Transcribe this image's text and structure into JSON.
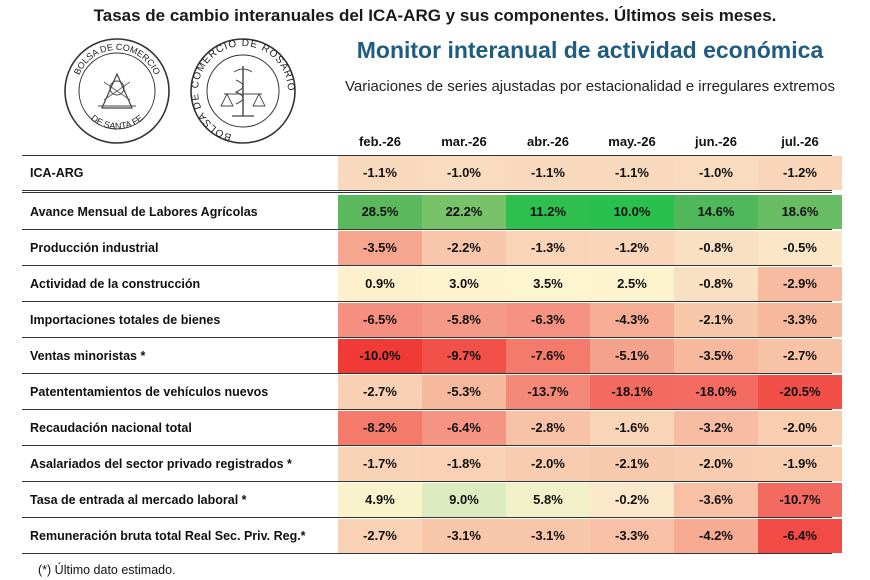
{
  "header": {
    "top_title": "Tasas de cambio interanuales del ICA-ARG y sus componentes. Últimos seis meses.",
    "monitor_title": "Monitor interanual de actividad económica",
    "subtitle": "Variaciones de series ajustadas por estacionalidad e irregulares extremos"
  },
  "logos": {
    "seal_santa_fe": {
      "text_top": "BOLSA DE COMERCIO",
      "text_bottom": "DE SANTA FE"
    },
    "seal_rosario": {
      "text_ring": "BOLSA DE COMERCIO DE ROSARIO"
    }
  },
  "table": {
    "columns": [
      "feb.-26",
      "mar.-26",
      "abr.-26",
      "may.-26",
      "jun.-26",
      "jul.-26"
    ],
    "rows": [
      {
        "label": "ICA-ARG",
        "values": [
          "-1.1%",
          "-1.0%",
          "-1.1%",
          "-1.1%",
          "-1.0%",
          "-1.2%"
        ],
        "colors": [
          "#f9d9bd",
          "#f9dcc0",
          "#f9d9bd",
          "#f9d9bd",
          "#f9dcc0",
          "#f9d6ba"
        ]
      },
      {
        "label": "Avance Mensual de Labores Agrícolas",
        "values": [
          "28.5%",
          "22.2%",
          "11.2%",
          "10.0%",
          "14.6%",
          "18.6%"
        ],
        "colors": [
          "#5cb85c",
          "#78c26a",
          "#2fbf4f",
          "#29c04e",
          "#4eb85a",
          "#68bd64"
        ]
      },
      {
        "label": "Producción industrial",
        "values": [
          "-3.5%",
          "-2.2%",
          "-1.3%",
          "-1.2%",
          "-0.8%",
          "-0.5%"
        ],
        "colors": [
          "#f6a58f",
          "#f8c7ab",
          "#f9d4b7",
          "#f9d6b9",
          "#fae0c3",
          "#fbe6c8"
        ]
      },
      {
        "label": "Actividad de la construcción",
        "values": [
          "0.9%",
          "3.0%",
          "3.5%",
          "2.5%",
          "-0.8%",
          "-2.9%"
        ],
        "colors": [
          "#fdf1cd",
          "#fdf4cf",
          "#fdf5d0",
          "#fdf3ce",
          "#fae0c3",
          "#f7bba1"
        ]
      },
      {
        "label": "Importaciones totales de bienes",
        "values": [
          "-6.5%",
          "-5.8%",
          "-6.3%",
          "-4.3%",
          "-2.1%",
          "-3.3%"
        ],
        "colors": [
          "#f58f80",
          "#f59a86",
          "#f59282",
          "#f6ad94",
          "#f8c8ab",
          "#f7b99e"
        ]
      },
      {
        "label": "Ventas minoristas *",
        "values": [
          "-10.0%",
          "-9.7%",
          "-7.6%",
          "-5.1%",
          "-3.5%",
          "-2.7%"
        ],
        "colors": [
          "#f03a36",
          "#f2514a",
          "#f47a6b",
          "#f5a28c",
          "#f7b89d",
          "#f8c2a7"
        ]
      },
      {
        "label": "Patententamientos de vehículos nuevos",
        "values": [
          "-2.7%",
          "-5.3%",
          "-13.7%",
          "-18.1%",
          "-18.0%",
          "-20.5%"
        ],
        "colors": [
          "#f8d0b3",
          "#f6b99e",
          "#f48878",
          "#f36a60",
          "#f36b61",
          "#f24f49"
        ]
      },
      {
        "label": "Recaudación nacional total",
        "values": [
          "-8.2%",
          "-6.4%",
          "-2.8%",
          "-1.6%",
          "-3.2%",
          "-2.0%"
        ],
        "colors": [
          "#f47a6c",
          "#f59483",
          "#f8c2a6",
          "#f9d5b8",
          "#f7bca1",
          "#f8cdb0"
        ]
      },
      {
        "label": "Asalariados del sector privado registrados *",
        "values": [
          "-1.7%",
          "-1.8%",
          "-2.0%",
          "-2.1%",
          "-2.0%",
          "-1.9%"
        ],
        "colors": [
          "#f9d3b6",
          "#f9d1b4",
          "#f8ccaf",
          "#f8caad",
          "#f8ccaf",
          "#f8ceb1"
        ]
      },
      {
        "label": "Tasa de entrada al mercado laboral *",
        "values": [
          "4.9%",
          "9.0%",
          "5.8%",
          "-0.2%",
          "-3.6%",
          "-10.7%"
        ],
        "colors": [
          "#f8f3cb",
          "#ddebc1",
          "#f1f0c8",
          "#fbe8ca",
          "#f8c0a4",
          "#f26a60"
        ]
      },
      {
        "label": "Remuneración bruta total Real Sec. Priv. Reg.*",
        "values": [
          "-2.7%",
          "-3.1%",
          "-3.1%",
          "-3.3%",
          "-4.2%",
          "-6.4%"
        ],
        "colors": [
          "#f9d2b5",
          "#f8c6a9",
          "#f8c6a9",
          "#f8c1a5",
          "#f6ab92",
          "#f24b45"
        ]
      }
    ]
  },
  "footnote": "(*) Último dato estimado."
}
